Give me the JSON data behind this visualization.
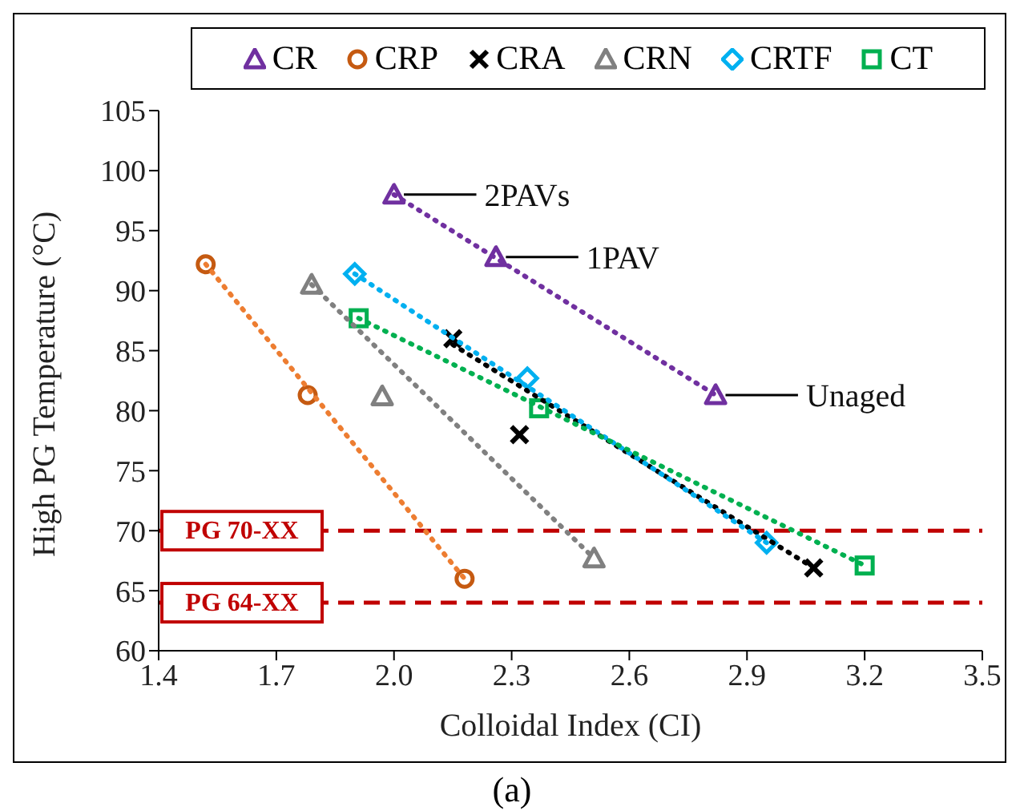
{
  "chart_data": {
    "type": "scatter",
    "xlabel": "Colloidal Index (CI)",
    "ylabel": "High PG Temperature  (°C)",
    "xlim": [
      1.4,
      3.5
    ],
    "xticks": [
      {
        "value": 1.4,
        "label": "1.4"
      },
      {
        "value": 1.7,
        "label": "1.7"
      },
      {
        "value": 2.0,
        "label": "2.0"
      },
      {
        "value": 2.3,
        "label": "2.3"
      },
      {
        "value": 2.6,
        "label": "2.6"
      },
      {
        "value": 2.9,
        "label": "2.9"
      },
      {
        "value": 3.2,
        "label": "3.2"
      },
      {
        "value": 3.5,
        "label": "3.5"
      }
    ],
    "ylim": [
      60,
      105
    ],
    "yticks": [
      60,
      65,
      70,
      75,
      80,
      85,
      90,
      95,
      100,
      105
    ],
    "grid": false,
    "legend": "top",
    "series": [
      {
        "name": "CR",
        "color": "#7030a0",
        "marker": "triangle",
        "x": [
          2.0,
          2.26,
          2.82
        ],
        "values": [
          98.0,
          92.8,
          81.3
        ]
      },
      {
        "name": "CRP",
        "color": "#c55a11",
        "marker": "circle",
        "x": [
          1.52,
          1.78,
          2.18
        ],
        "values": [
          92.2,
          81.3,
          66.0
        ]
      },
      {
        "name": "CRA",
        "color": "#000000",
        "marker": "cross",
        "x": [
          2.15,
          2.32,
          3.07
        ],
        "values": [
          86.0,
          78.0,
          66.9
        ]
      },
      {
        "name": "CRN",
        "color": "#808080",
        "marker": "triangle",
        "x": [
          1.79,
          1.97,
          2.51
        ],
        "values": [
          90.5,
          81.2,
          67.7
        ]
      },
      {
        "name": "CRTF",
        "color": "#00b0f0",
        "marker": "diamond",
        "x": [
          1.9,
          2.34,
          2.95
        ],
        "values": [
          91.4,
          82.7,
          69.0
        ]
      },
      {
        "name": "CT",
        "color": "#00b050",
        "marker": "square",
        "x": [
          1.91,
          2.37,
          3.2
        ],
        "values": [
          87.7,
          80.2,
          67.1
        ]
      },
      {
        "type": "line",
        "color": "#7030a0",
        "line_style": "dotted",
        "x": [
          2.0,
          2.82
        ],
        "values": [
          98.0,
          81.3
        ]
      },
      {
        "type": "line",
        "color": "#ed7d31",
        "line_style": "dotted",
        "x": [
          1.52,
          2.18
        ],
        "values": [
          92.2,
          66.0
        ]
      },
      {
        "type": "line",
        "color": "#000000",
        "line_style": "dotted",
        "x": [
          2.15,
          3.07
        ],
        "values": [
          85.5,
          66.9
        ]
      },
      {
        "type": "line",
        "color": "#808080",
        "line_style": "dotted",
        "x": [
          1.79,
          2.51
        ],
        "values": [
          90.5,
          67.7
        ]
      },
      {
        "type": "line",
        "color": "#00b0f0",
        "line_style": "dotted",
        "x": [
          1.9,
          2.95
        ],
        "values": [
          91.4,
          69.0
        ]
      },
      {
        "type": "line",
        "color": "#00b050",
        "line_style": "dotted",
        "x": [
          1.91,
          3.2
        ],
        "values": [
          87.7,
          67.1
        ]
      }
    ],
    "ref_lines": [
      {
        "axis": "y",
        "value": 70,
        "label": "PG 70-XX",
        "color": "#c00000",
        "line_style": "dashed"
      },
      {
        "axis": "y",
        "value": 64,
        "label": "PG 64-XX",
        "color": "#c00000",
        "line_style": "dashed"
      }
    ],
    "annotations": [
      {
        "text": "2PAVs",
        "x": 2.0,
        "y": 98.0
      },
      {
        "text": "1PAV",
        "x": 2.26,
        "y": 92.8
      },
      {
        "text": "Unaged",
        "x": 2.82,
        "y": 81.3
      },
      "(a)"
    ]
  }
}
